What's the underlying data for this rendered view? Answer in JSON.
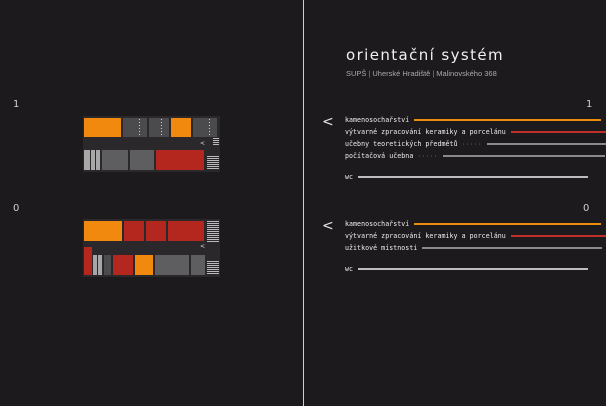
{
  "header": {
    "title": "orientační systém",
    "subtitle_parts": [
      "SUPŠ",
      "Uherské Hradiště",
      "Malinovského 368"
    ]
  },
  "floor_left": {
    "upper": "1",
    "lower": "0"
  },
  "floor_right": {
    "upper": "1",
    "lower": "0"
  },
  "arrows": {
    "upper": "<",
    "lower": "<"
  },
  "floor1_rooms": [
    {
      "label": "kamenosochařství",
      "color": "#ee8a10"
    },
    {
      "label": "výtvarné zpracování keramiky a porcelánu",
      "color": "#c0302a"
    },
    {
      "label": "učebny teoretických předmětů",
      "dots": "·····",
      "color": "#8a8a8a"
    },
    {
      "label": "počítačová učebna",
      "dots": "·····",
      "color": "#8a8a8a"
    },
    {
      "label": "wc",
      "color": "#bdbdbd"
    }
  ],
  "floor0_rooms": [
    {
      "label": "kamenosochařství",
      "color": "#ee8a10"
    },
    {
      "label": "výtvarné zpracování keramiky a porcelánu",
      "color": "#c0302a"
    },
    {
      "label": "užitkové místnosti",
      "color": "#8a8a8a"
    },
    {
      "label": "wc",
      "color": "#bdbdbd"
    }
  ],
  "plan_arrow": "<"
}
